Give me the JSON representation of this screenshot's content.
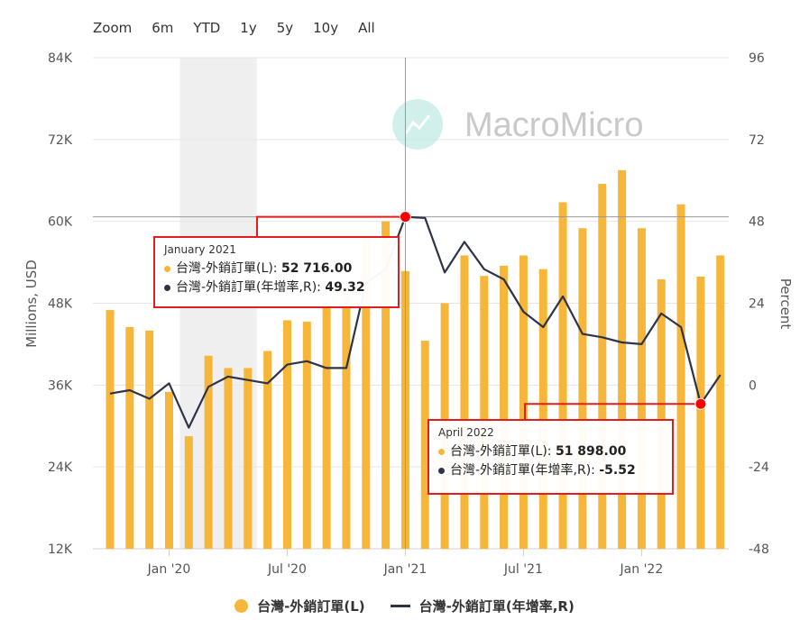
{
  "zoom": {
    "label": "Zoom",
    "options": [
      "6m",
      "YTD",
      "1y",
      "5y",
      "10y",
      "All"
    ]
  },
  "watermark": "MacroMicro",
  "colors": {
    "bar": "#f5b63a",
    "line": "#2e3347",
    "highlight": "#ff0000",
    "tooltip_border": "#e01e1e"
  },
  "chart_data": {
    "type": "bar+line",
    "left_axis": {
      "label": "Millions, USD",
      "ticks": [
        "12K",
        "24K",
        "36K",
        "48K",
        "60K",
        "72K",
        "84K"
      ],
      "range": [
        12000,
        84000
      ]
    },
    "right_axis": {
      "label": "Percent",
      "ticks": [
        "-48",
        "-24",
        "0",
        "24",
        "48",
        "72",
        "96"
      ],
      "range": [
        -48,
        96
      ]
    },
    "x_ticks": [
      "Jan '20",
      "Jul '20",
      "Jan '21",
      "Jul '21",
      "Jan '22"
    ],
    "months": [
      "2019-10",
      "2019-11",
      "2019-12",
      "2020-01",
      "2020-02",
      "2020-03",
      "2020-04",
      "2020-05",
      "2020-06",
      "2020-07",
      "2020-08",
      "2020-09",
      "2020-10",
      "2020-11",
      "2020-12",
      "2021-01",
      "2021-02",
      "2021-03",
      "2021-04",
      "2021-05",
      "2021-06",
      "2021-07",
      "2021-08",
      "2021-09",
      "2021-10",
      "2021-11",
      "2021-12",
      "2022-01",
      "2022-02",
      "2022-03",
      "2022-04",
      "2022-05"
    ],
    "series": [
      {
        "name": "台灣-外銷訂單(L)",
        "type": "bar",
        "axis": "left",
        "values": [
          47000,
          44500,
          44000,
          35000,
          28500,
          40300,
          38500,
          38500,
          41000,
          45500,
          45300,
          47500,
          49000,
          57500,
          60000,
          52716,
          42500,
          48000,
          55000,
          52000,
          53500,
          55000,
          53000,
          62800,
          59000,
          65500,
          67500,
          59000,
          51500,
          62500,
          51898,
          55000
        ]
      },
      {
        "name": "台灣-外銷訂單(年增率,R)",
        "type": "line",
        "axis": "right",
        "values": [
          -2.5,
          -1.5,
          -4,
          0.5,
          -12.5,
          -0.5,
          2.5,
          1.5,
          0.5,
          6,
          7,
          5,
          5,
          30,
          34,
          49.32,
          49,
          33,
          42,
          34,
          31,
          21.5,
          17,
          26,
          15,
          14,
          12.5,
          12,
          21,
          17,
          -5.52,
          3
        ]
      }
    ],
    "shaded_range": [
      "2020-02",
      "2020-05"
    ],
    "highlights": [
      {
        "month": "2021-01",
        "series": 1
      },
      {
        "month": "2022-04",
        "series": 1
      }
    ]
  },
  "tooltips": [
    {
      "title": "January 2021",
      "rows": [
        {
          "label": "台灣-外銷訂單(L): ",
          "value": "52 716.00"
        },
        {
          "label": "台灣-外銷訂單(年增率,R): ",
          "value": "49.32"
        }
      ]
    },
    {
      "title": "April 2022",
      "rows": [
        {
          "label": "台灣-外銷訂單(L): ",
          "value": "51 898.00"
        },
        {
          "label": "台灣-外銷訂單(年增率,R): ",
          "value": "-5.52"
        }
      ]
    }
  ],
  "legend": [
    {
      "label": "台灣-外銷訂單(L)",
      "type": "bar"
    },
    {
      "label": "台灣-外銷訂單(年增率,R)",
      "type": "line"
    }
  ]
}
